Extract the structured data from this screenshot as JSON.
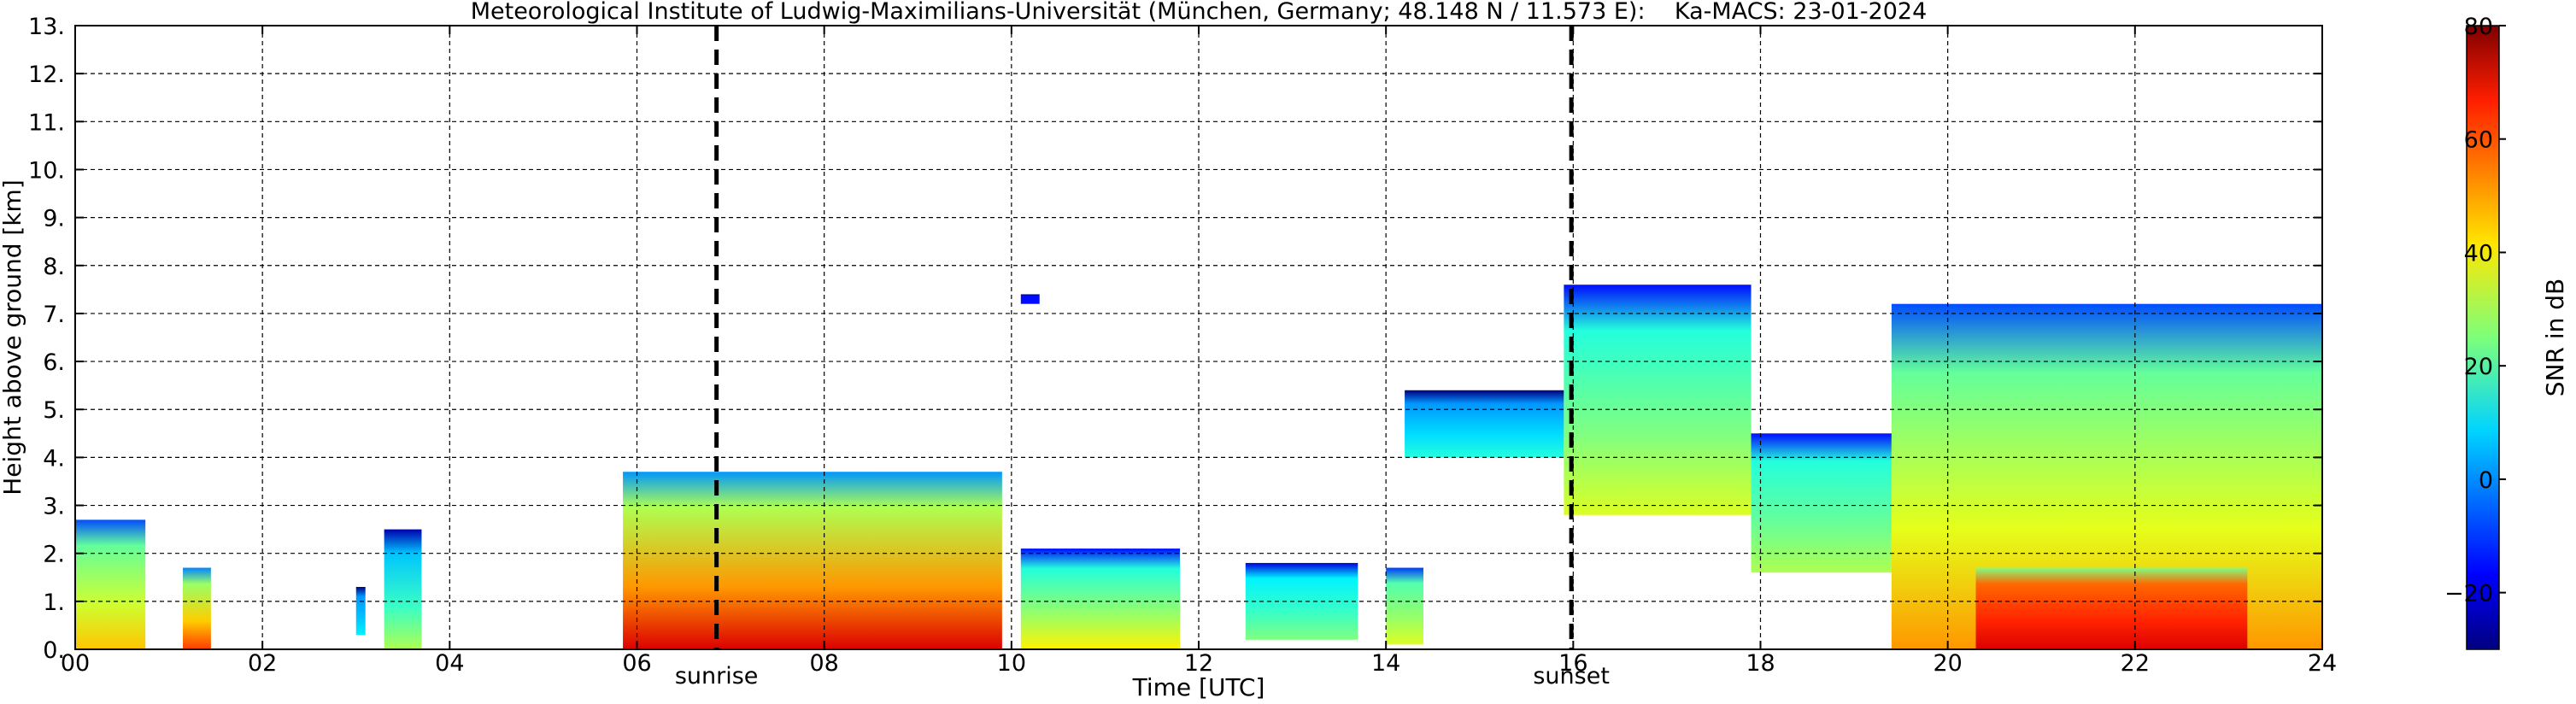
{
  "chart_data": {
    "type": "heatmap",
    "title": "Meteorological Institute of Ludwig-Maximilians-Universität (München, Germany; 48.148 N / 11.573 E):    Ka-MACS: 23-01-2024",
    "xlabel": "Time [UTC]",
    "ylabel": "Height above ground [km]",
    "xlim": [
      0,
      24
    ],
    "ylim": [
      0,
      13
    ],
    "x_ticks": [
      0,
      2,
      4,
      6,
      8,
      10,
      12,
      14,
      16,
      18,
      20,
      22,
      24
    ],
    "x_tick_labels": [
      "00",
      "02",
      "04",
      "06",
      "08",
      "10",
      "12",
      "14",
      "16",
      "18",
      "20",
      "22",
      "24"
    ],
    "y_ticks": [
      0,
      1,
      2,
      3,
      4,
      5,
      6,
      7,
      8,
      9,
      10,
      11,
      12,
      13
    ],
    "y_tick_labels": [
      "0.",
      "1.",
      "2.",
      "3.",
      "4.",
      "5.",
      "6.",
      "7.",
      "8.",
      "9.",
      "10.",
      "11.",
      "12.",
      "13."
    ],
    "grid": true,
    "colorbar": {
      "label": "SNR in dB",
      "range": [
        -30,
        80
      ],
      "ticks": [
        -20,
        0,
        20,
        40,
        60,
        80
      ],
      "tick_labels": [
        "−20",
        "0",
        "20",
        "40",
        "60",
        "80"
      ],
      "colormap": "jet"
    },
    "markers": [
      {
        "label": "sunrise",
        "x": 6.85
      },
      {
        "label": "sunset",
        "x": 15.98
      }
    ],
    "echo_regions": [
      {
        "x": [
          0.0,
          0.75
        ],
        "top": 2.7,
        "base": 0.0,
        "snr": 22,
        "core_snr": 45
      },
      {
        "x": [
          1.15,
          1.45
        ],
        "top": 1.7,
        "base": 0.0,
        "snr": 28,
        "core_snr": 60
      },
      {
        "x": [
          3.0,
          3.1
        ],
        "top": 1.3,
        "base": 0.3,
        "snr": 0,
        "core_snr": 10
      },
      {
        "x": [
          3.3,
          3.7
        ],
        "top": 2.5,
        "base": 0.0,
        "snr": 5,
        "core_snr": 30
      },
      {
        "x": [
          5.85,
          9.9
        ],
        "top": 3.7,
        "base": 0.0,
        "snr": 30,
        "core_snr": 70
      },
      {
        "x": [
          10.1,
          11.8
        ],
        "top": 2.1,
        "base": 0.0,
        "snr": 15,
        "core_snr": 40
      },
      {
        "x": [
          10.1,
          10.3
        ],
        "top": 7.4,
        "base": 7.2,
        "snr": -15,
        "core_snr": -15
      },
      {
        "x": [
          12.5,
          13.7
        ],
        "top": 1.8,
        "base": 0.2,
        "snr": 10,
        "core_snr": 25
      },
      {
        "x": [
          14.0,
          14.4
        ],
        "top": 1.7,
        "base": 0.1,
        "snr": 20,
        "core_snr": 35
      },
      {
        "x": [
          14.2,
          15.9
        ],
        "top": 5.4,
        "base": 4.0,
        "snr": 0,
        "core_snr": 15
      },
      {
        "x": [
          15.9,
          17.9
        ],
        "top": 7.6,
        "base": 2.8,
        "snr": 15,
        "core_snr": 35
      },
      {
        "x": [
          17.9,
          19.4
        ],
        "top": 4.5,
        "base": 1.6,
        "snr": 15,
        "core_snr": 30
      },
      {
        "x": [
          19.4,
          24.0
        ],
        "top": 7.2,
        "base": 0.0,
        "snr": 22,
        "core_snr": 50
      },
      {
        "x": [
          20.3,
          23.2
        ],
        "top": 1.7,
        "base": 0.0,
        "snr": 55,
        "core_snr": 70
      }
    ]
  }
}
